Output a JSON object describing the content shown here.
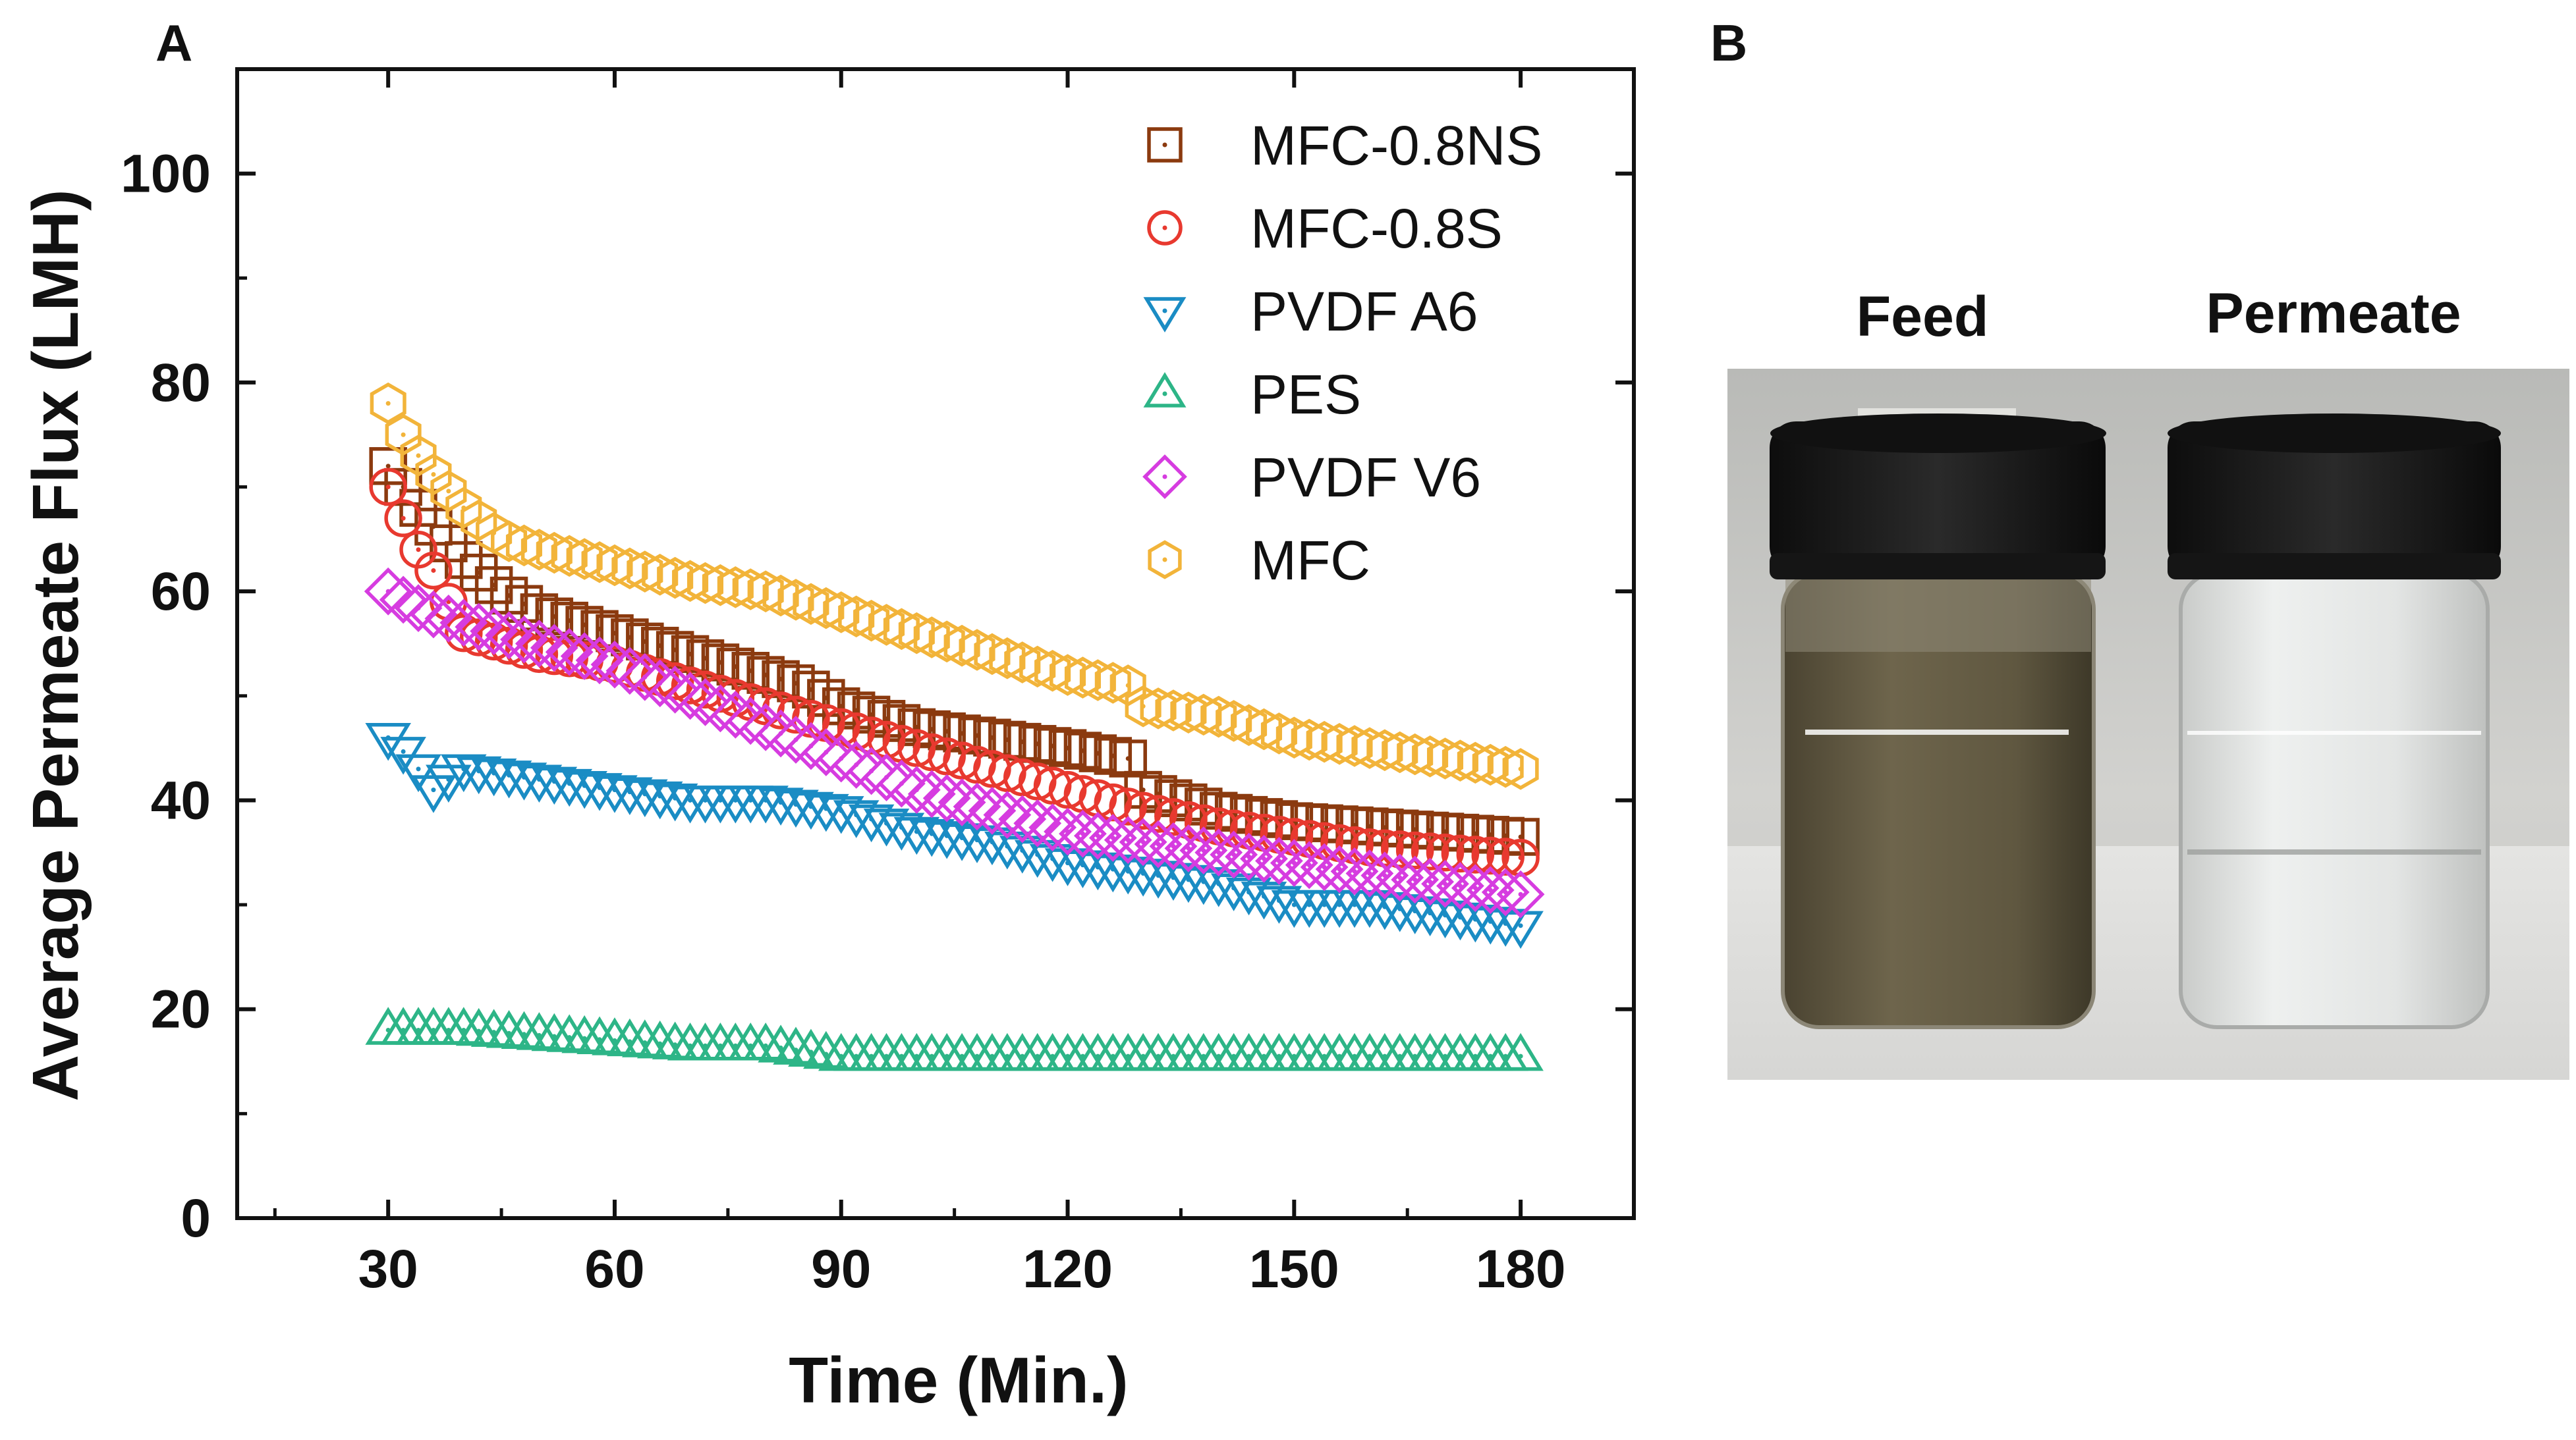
{
  "panel_a_label": "A",
  "panel_b_label": "B",
  "chart_data": {
    "type": "scatter",
    "title": "",
    "xlabel": "Time (Min.)",
    "ylabel": "Average Permeate Flux (LMH)",
    "xlim": [
      10,
      195
    ],
    "ylim": [
      0,
      110
    ],
    "xticks": [
      30,
      60,
      90,
      120,
      150,
      180
    ],
    "yticks": [
      0,
      20,
      40,
      60,
      80,
      100
    ],
    "legend_position": "top-right",
    "series": [
      {
        "name": "MFC-0.8NS",
        "marker": "square",
        "color": "#8B3A0F",
        "x": [
          30,
          35,
          40,
          45,
          50,
          60,
          70,
          80,
          85,
          90,
          100,
          110,
          120,
          128,
          130,
          140,
          150,
          160,
          170,
          180
        ],
        "y": [
          72,
          67,
          63,
          60,
          58,
          56,
          54,
          52,
          51,
          49,
          47,
          46,
          45,
          44,
          41,
          39,
          38,
          37.5,
          37,
          36.5
        ]
      },
      {
        "name": "MFC-0.8S",
        "marker": "circle",
        "color": "#E8392F",
        "x": [
          30,
          32,
          34,
          36,
          38,
          40,
          45,
          50,
          60,
          70,
          80,
          90,
          100,
          110,
          120,
          130,
          140,
          150,
          160,
          170,
          180
        ],
        "y": [
          70,
          67,
          64,
          62,
          59,
          56,
          55,
          54,
          53,
          51,
          49,
          47,
          45,
          43,
          41,
          39,
          37.5,
          36.5,
          35.5,
          35,
          34.5
        ]
      },
      {
        "name": "PVDF A6",
        "marker": "triangle-down",
        "color": "#1A8CC4",
        "x": [
          30,
          33,
          36,
          40,
          50,
          60,
          70,
          80,
          90,
          100,
          110,
          120,
          130,
          140,
          150,
          160,
          170,
          180
        ],
        "y": [
          46,
          44,
          41,
          43,
          42,
          41,
          40,
          40,
          39,
          37,
          36,
          34,
          33,
          32,
          30,
          30,
          29,
          28
        ]
      },
      {
        "name": "PES",
        "marker": "triangle-up",
        "color": "#2DB587",
        "x": [
          30,
          40,
          50,
          60,
          70,
          80,
          90,
          100,
          110,
          120,
          130,
          140,
          150,
          160,
          170,
          180
        ],
        "y": [
          18,
          18,
          17.5,
          17,
          16.5,
          16.5,
          15.5,
          15.5,
          15.5,
          15.5,
          15.5,
          15.5,
          15.5,
          15.5,
          15.5,
          15.5
        ]
      },
      {
        "name": "PVDF V6",
        "marker": "diamond",
        "color": "#D63CE0",
        "x": [
          30,
          35,
          40,
          50,
          60,
          70,
          80,
          90,
          100,
          110,
          120,
          130,
          140,
          150,
          160,
          170,
          180
        ],
        "y": [
          60,
          58,
          57,
          55,
          53,
          50,
          47,
          44,
          41,
          39,
          37,
          36,
          35,
          34,
          33,
          32,
          31
        ]
      },
      {
        "name": "MFC",
        "marker": "hexagon",
        "color": "#F2B43A",
        "x": [
          30,
          32,
          35,
          40,
          45,
          50,
          60,
          70,
          80,
          90,
          100,
          110,
          120,
          128,
          130,
          140,
          150,
          160,
          170,
          180
        ],
        "y": [
          78,
          75,
          72,
          68,
          65,
          64,
          62.5,
          61,
          60,
          58,
          56,
          54,
          52,
          51,
          49,
          48,
          46,
          45,
          44,
          43
        ]
      }
    ]
  },
  "photo": {
    "feed_label": "Feed",
    "permeate_label": "Permeate"
  }
}
